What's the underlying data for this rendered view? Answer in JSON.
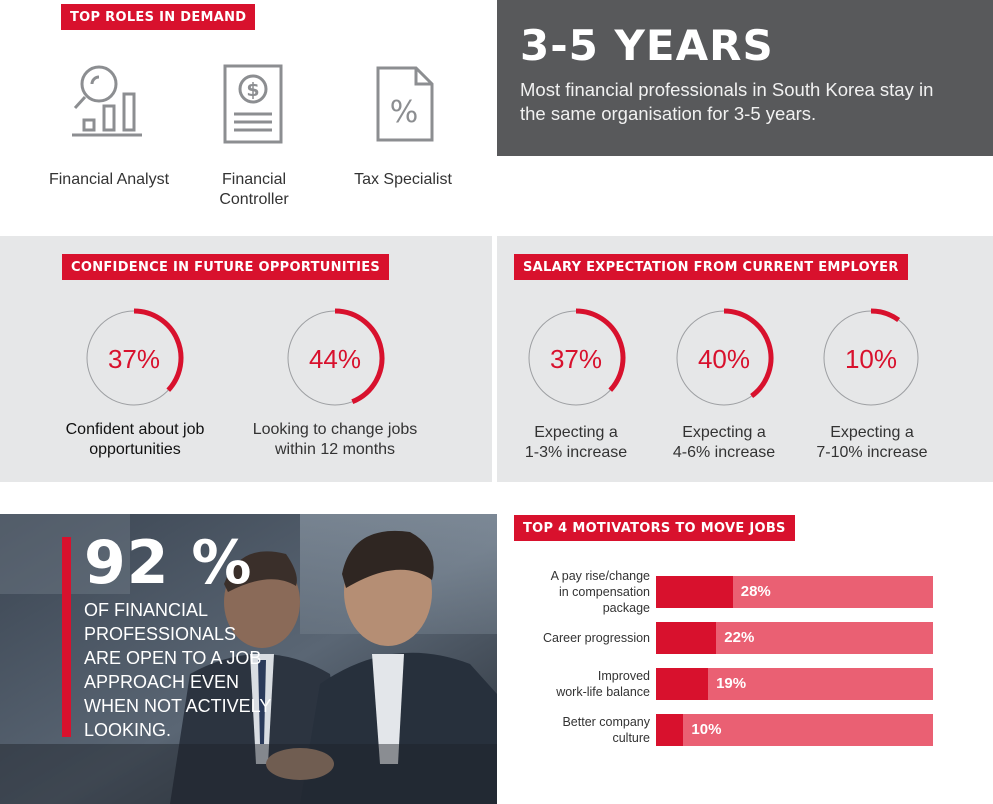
{
  "top_roles": {
    "heading": "TOP ROLES IN DEMAND",
    "roles": [
      {
        "label_line1": "Financial Analyst",
        "label_line2": "",
        "icon": "chart-magnifier-icon"
      },
      {
        "label_line1": "Financial",
        "label_line2": "Controller",
        "icon": "dollar-document-icon"
      },
      {
        "label_line1": "Tax Specialist",
        "label_line2": "",
        "icon": "percent-document-icon"
      }
    ]
  },
  "tenure": {
    "headline": "3-5 YEARS",
    "text": "Most financial professionals in South Korea stay in the same organisation for 3-5 years."
  },
  "confidence": {
    "heading": "CONFIDENCE IN FUTURE OPPORTUNITIES",
    "items": [
      {
        "value_label": "37%",
        "value": 37,
        "cap1": "Confident about job",
        "cap2": "opportunities"
      },
      {
        "value_label": "44%",
        "value": 44,
        "cap1": "Looking to change jobs",
        "cap2": "within 12 months"
      }
    ]
  },
  "salary": {
    "heading": "SALARY EXPECTATION FROM CURRENT EMPLOYER",
    "items": [
      {
        "value_label": "37%",
        "value": 37,
        "cap1": "Expecting a",
        "cap2": "1-3% increase"
      },
      {
        "value_label": "40%",
        "value": 40,
        "cap1": "Expecting a",
        "cap2": "4-6% increase"
      },
      {
        "value_label": "10%",
        "value": 10,
        "cap1": "Expecting a",
        "cap2": "7-10% increase"
      }
    ]
  },
  "open_stat": {
    "value": "92 %",
    "lines": [
      "OF FINANCIAL",
      "PROFESSIONALS",
      "ARE OPEN TO A JOB",
      "APPROACH EVEN",
      "WHEN NOT ACTIVELY",
      "LOOKING."
    ]
  },
  "chart_data": {
    "type": "bar",
    "title": "TOP 4 MOTIVATORS TO MOVE JOBS",
    "categories": [
      [
        "A pay rise/change",
        "in compensation",
        "package"
      ],
      [
        "Career progression"
      ],
      [
        "Improved",
        "work-life balance"
      ],
      [
        "Better company",
        "culture"
      ]
    ],
    "values": [
      28,
      22,
      19,
      10
    ],
    "value_labels": [
      "28%",
      "22%",
      "19%",
      "10%"
    ],
    "xlim": [
      0,
      100
    ],
    "grid": false
  },
  "colors": {
    "accent_red": "#d8112d",
    "bar_background": "#ea6073",
    "ring_track": "#9d9fa2",
    "dark_panel": "#58595b",
    "grey_panel": "#e6e7e8"
  }
}
